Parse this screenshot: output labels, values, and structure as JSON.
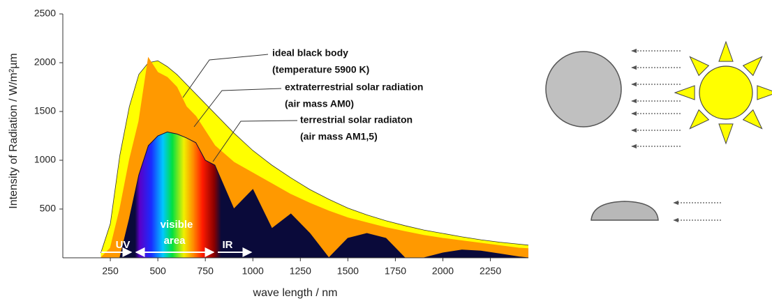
{
  "chart_data": {
    "type": "area",
    "x_label": "wave length / nm",
    "y_label": "Intensity of Radiation  /  W/m²µm",
    "xlim": [
      0,
      2450
    ],
    "ylim": [
      0,
      2500
    ],
    "xticks": [
      250,
      500,
      750,
      1000,
      1250,
      1500,
      1750,
      2000,
      2250
    ],
    "yticks": [
      500,
      1000,
      1500,
      2000,
      2500
    ],
    "x": [
      200,
      250,
      300,
      350,
      400,
      450,
      500,
      550,
      600,
      650,
      700,
      750,
      800,
      900,
      1000,
      1100,
      1200,
      1300,
      1400,
      1500,
      1600,
      1700,
      1800,
      1900,
      2000,
      2100,
      2200,
      2300,
      2400,
      2450
    ],
    "series": [
      {
        "name": "ideal black body",
        "color": "#ffff00",
        "values": [
          50,
          350,
          1050,
          1550,
          1880,
          2000,
          2020,
          1960,
          1880,
          1780,
          1680,
          1580,
          1480,
          1280,
          1100,
          950,
          820,
          700,
          600,
          510,
          440,
          380,
          330,
          285,
          250,
          215,
          185,
          160,
          140,
          130
        ]
      },
      {
        "name": "extraterrestrial solar radiation",
        "color": "#ff9900",
        "values": [
          0,
          100,
          500,
          1000,
          1400,
          2050,
          1900,
          1850,
          1750,
          1550,
          1450,
          1300,
          1150,
          980,
          870,
          760,
          650,
          560,
          480,
          410,
          360,
          310,
          270,
          230,
          200,
          175,
          150,
          125,
          100,
          95
        ]
      },
      {
        "name": "terrestrial solar radiaton",
        "color": "#0a0a3a",
        "values": [
          0,
          0,
          0,
          400,
          850,
          1150,
          1250,
          1290,
          1270,
          1230,
          1180,
          1000,
          950,
          500,
          700,
          300,
          450,
          250,
          0,
          200,
          250,
          200,
          0,
          0,
          50,
          80,
          70,
          40,
          10,
          0
        ]
      }
    ],
    "annotations": {
      "black_body": [
        "ideal black body",
        "(temperature 5900 K)"
      ],
      "am0": [
        "extraterrestrial solar radiation",
        "(air mass AM0)"
      ],
      "am15": [
        "terrestrial solar radiaton",
        "(air mass AM1,5)"
      ],
      "uv": "UV",
      "visible": [
        "visible",
        "area"
      ],
      "ir": "IR"
    }
  }
}
